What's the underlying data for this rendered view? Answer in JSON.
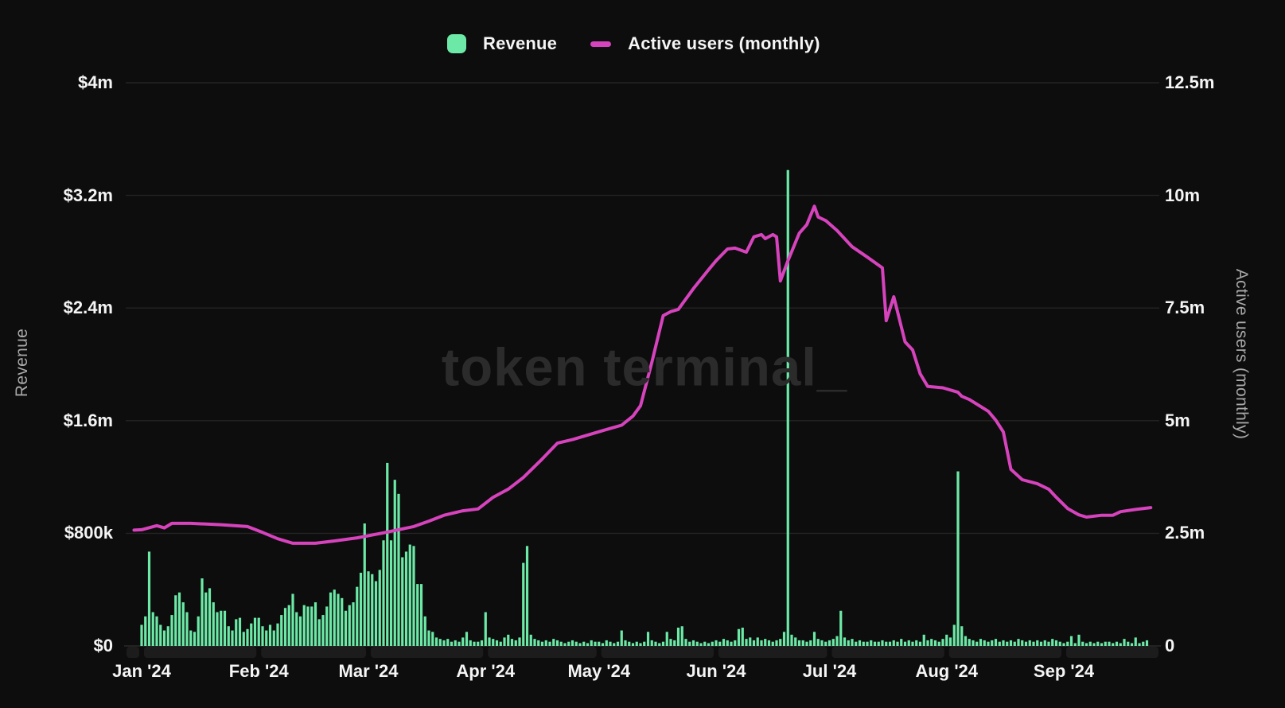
{
  "watermark": "token terminal_",
  "colors": {
    "background": "#0c0d0c",
    "bar": "#6de9a7",
    "line": "#d643bd",
    "gridline": "#242424",
    "axis_strip": "#1c1c1c",
    "tick_text": "#f5f5f5",
    "axis_title_text": "#a8a8a8",
    "watermark_text": "#2b2b2b"
  },
  "legend": {
    "items": [
      {
        "label": "Revenue",
        "marker": "square",
        "color": "#6de9a7"
      },
      {
        "label": "Active users (monthly)",
        "marker": "line",
        "color": "#d643bd"
      }
    ]
  },
  "chart_data": {
    "type": "bar+line",
    "title": "",
    "grid": "horizontal",
    "left_axis": {
      "title": "Revenue",
      "unit": "USD",
      "ticks": [
        "$0",
        "$800k",
        "$1.6m",
        "$2.4m",
        "$3.2m",
        "$4m"
      ],
      "tick_values": [
        0,
        0.8,
        1.6,
        2.4,
        3.2,
        4.0
      ],
      "max": 4.0
    },
    "right_axis": {
      "title": "Active users (monthly)",
      "unit": "users",
      "ticks": [
        "0",
        "2.5m",
        "5m",
        "7.5m",
        "10m",
        "12.5m"
      ],
      "tick_values": [
        0,
        2.5,
        5,
        7.5,
        10,
        12.5
      ],
      "max": 12.5
    },
    "x_axis": {
      "ticks": [
        "Jan '24",
        "Feb '24",
        "Mar '24",
        "Apr '24",
        "May '24",
        "Jun '24",
        "Jul '24",
        "Aug '24",
        "Sep '24"
      ],
      "tick_day_offsets": [
        0,
        31,
        60,
        91,
        121,
        152,
        182,
        213,
        244
      ],
      "start_date": "Jan 1 2024",
      "total_days": 267
    },
    "series": [
      {
        "name": "Revenue",
        "type": "bar",
        "axis": "left",
        "unit": "$m/day",
        "daily_values": [
          0.15,
          0.21,
          0.67,
          0.24,
          0.21,
          0.15,
          0.11,
          0.14,
          0.22,
          0.36,
          0.38,
          0.31,
          0.24,
          0.11,
          0.1,
          0.21,
          0.48,
          0.38,
          0.41,
          0.31,
          0.24,
          0.25,
          0.25,
          0.14,
          0.11,
          0.19,
          0.2,
          0.1,
          0.12,
          0.16,
          0.2,
          0.2,
          0.14,
          0.11,
          0.15,
          0.11,
          0.16,
          0.22,
          0.27,
          0.29,
          0.37,
          0.24,
          0.21,
          0.29,
          0.28,
          0.28,
          0.31,
          0.19,
          0.22,
          0.28,
          0.38,
          0.4,
          0.37,
          0.34,
          0.25,
          0.29,
          0.31,
          0.42,
          0.52,
          0.87,
          0.53,
          0.51,
          0.46,
          0.54,
          0.75,
          1.3,
          0.75,
          1.18,
          1.08,
          0.63,
          0.67,
          0.72,
          0.71,
          0.44,
          0.44,
          0.21,
          0.11,
          0.1,
          0.06,
          0.05,
          0.04,
          0.05,
          0.03,
          0.04,
          0.03,
          0.06,
          0.1,
          0.04,
          0.03,
          0.03,
          0.04,
          0.24,
          0.06,
          0.05,
          0.04,
          0.03,
          0.06,
          0.08,
          0.05,
          0.04,
          0.06,
          0.59,
          0.71,
          0.08,
          0.05,
          0.04,
          0.03,
          0.04,
          0.03,
          0.05,
          0.04,
          0.03,
          0.02,
          0.03,
          0.04,
          0.03,
          0.02,
          0.03,
          0.02,
          0.04,
          0.03,
          0.03,
          0.02,
          0.04,
          0.03,
          0.02,
          0.03,
          0.11,
          0.04,
          0.03,
          0.02,
          0.03,
          0.02,
          0.03,
          0.1,
          0.04,
          0.03,
          0.02,
          0.03,
          0.1,
          0.05,
          0.04,
          0.13,
          0.14,
          0.05,
          0.03,
          0.04,
          0.03,
          0.02,
          0.03,
          0.02,
          0.03,
          0.04,
          0.03,
          0.05,
          0.04,
          0.03,
          0.04,
          0.12,
          0.13,
          0.05,
          0.06,
          0.04,
          0.06,
          0.04,
          0.05,
          0.04,
          0.03,
          0.04,
          0.05,
          0.1,
          3.38,
          0.08,
          0.06,
          0.04,
          0.04,
          0.03,
          0.04,
          0.1,
          0.05,
          0.04,
          0.03,
          0.04,
          0.05,
          0.07,
          0.25,
          0.06,
          0.04,
          0.05,
          0.03,
          0.04,
          0.03,
          0.03,
          0.04,
          0.03,
          0.03,
          0.04,
          0.03,
          0.03,
          0.04,
          0.03,
          0.05,
          0.03,
          0.04,
          0.03,
          0.04,
          0.03,
          0.08,
          0.04,
          0.05,
          0.04,
          0.03,
          0.05,
          0.08,
          0.06,
          0.15,
          1.24,
          0.14,
          0.07,
          0.05,
          0.04,
          0.03,
          0.05,
          0.04,
          0.03,
          0.04,
          0.05,
          0.03,
          0.04,
          0.03,
          0.04,
          0.03,
          0.05,
          0.04,
          0.03,
          0.04,
          0.03,
          0.04,
          0.03,
          0.04,
          0.03,
          0.05,
          0.04,
          0.03,
          0.02,
          0.03,
          0.07,
          0.02,
          0.08,
          0.03,
          0.02,
          0.03,
          0.02,
          0.03,
          0.02,
          0.03,
          0.03,
          0.02,
          0.03,
          0.02,
          0.05,
          0.03,
          0.02,
          0.06,
          0.02,
          0.03,
          0.04
        ]
      },
      {
        "name": "Active users (monthly)",
        "type": "line",
        "axis": "right",
        "unit": "millions of users",
        "points_day_value": [
          [
            -2,
            2.57
          ],
          [
            0,
            2.58
          ],
          [
            4,
            2.67
          ],
          [
            6,
            2.62
          ],
          [
            8,
            2.72
          ],
          [
            13,
            2.72
          ],
          [
            21,
            2.69
          ],
          [
            28,
            2.65
          ],
          [
            32,
            2.52
          ],
          [
            36,
            2.38
          ],
          [
            40,
            2.28
          ],
          [
            46,
            2.28
          ],
          [
            51,
            2.33
          ],
          [
            57,
            2.4
          ],
          [
            64,
            2.51
          ],
          [
            72,
            2.65
          ],
          [
            76,
            2.77
          ],
          [
            80,
            2.9
          ],
          [
            85,
            3.0
          ],
          [
            89,
            3.04
          ],
          [
            93,
            3.3
          ],
          [
            97,
            3.48
          ],
          [
            101,
            3.74
          ],
          [
            106,
            4.15
          ],
          [
            110,
            4.5
          ],
          [
            114,
            4.58
          ],
          [
            118,
            4.68
          ],
          [
            122,
            4.78
          ],
          [
            127,
            4.9
          ],
          [
            130,
            5.1
          ],
          [
            132,
            5.33
          ],
          [
            135,
            6.3
          ],
          [
            138,
            7.33
          ],
          [
            140,
            7.42
          ],
          [
            142,
            7.47
          ],
          [
            146,
            7.93
          ],
          [
            150,
            8.35
          ],
          [
            152,
            8.55
          ],
          [
            155,
            8.81
          ],
          [
            157,
            8.83
          ],
          [
            160,
            8.74
          ],
          [
            162,
            9.08
          ],
          [
            164,
            9.13
          ],
          [
            165,
            9.04
          ],
          [
            167,
            9.13
          ],
          [
            168,
            9.08
          ],
          [
            169,
            8.1
          ],
          [
            171,
            8.55
          ],
          [
            174,
            9.16
          ],
          [
            176,
            9.35
          ],
          [
            178,
            9.76
          ],
          [
            179,
            9.52
          ],
          [
            181,
            9.44
          ],
          [
            184,
            9.22
          ],
          [
            188,
            8.86
          ],
          [
            192,
            8.63
          ],
          [
            196,
            8.39
          ],
          [
            197,
            7.22
          ],
          [
            199,
            7.75
          ],
          [
            202,
            6.75
          ],
          [
            204,
            6.57
          ],
          [
            206,
            6.04
          ],
          [
            208,
            5.76
          ],
          [
            212,
            5.73
          ],
          [
            216,
            5.63
          ],
          [
            217,
            5.54
          ],
          [
            219,
            5.47
          ],
          [
            224,
            5.21
          ],
          [
            226,
            5.01
          ],
          [
            228,
            4.75
          ],
          [
            230,
            3.92
          ],
          [
            233,
            3.69
          ],
          [
            237,
            3.6
          ],
          [
            240,
            3.48
          ],
          [
            242,
            3.3
          ],
          [
            245,
            3.05
          ],
          [
            248,
            2.91
          ],
          [
            250,
            2.86
          ],
          [
            254,
            2.9
          ],
          [
            257,
            2.9
          ],
          [
            259,
            2.98
          ],
          [
            263,
            3.03
          ],
          [
            267,
            3.07
          ]
        ]
      }
    ]
  }
}
